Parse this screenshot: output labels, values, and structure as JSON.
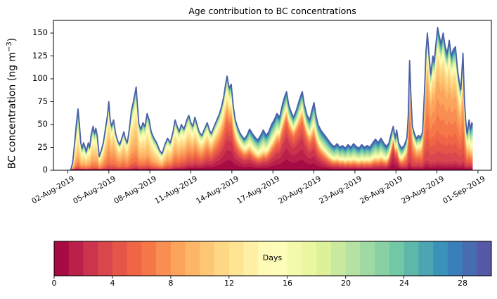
{
  "chart_data": {
    "type": "area",
    "stacked": true,
    "title": "Age contribution to BC concentrations",
    "ylabel_prefix": "BC concentration (ng m",
    "ylabel_sup": "−3",
    "ylabel_suffix": ")",
    "x_axis": {
      "unit": "date",
      "domain_days": [
        1,
        33
      ],
      "day_scale": "day-of-August-2019 (32 = 01-Sep-2019)",
      "tick_labels": [
        {
          "day": 2,
          "label": "02-Aug-2019"
        },
        {
          "day": 5,
          "label": "05-Aug-2019"
        },
        {
          "day": 8,
          "label": "08-Aug-2019"
        },
        {
          "day": 11,
          "label": "11-Aug-2019"
        },
        {
          "day": 14,
          "label": "14-Aug-2019"
        },
        {
          "day": 17,
          "label": "17-Aug-2019"
        },
        {
          "day": 20,
          "label": "20-Aug-2019"
        },
        {
          "day": 23,
          "label": "23-Aug-2019"
        },
        {
          "day": 26,
          "label": "26-Aug-2019"
        },
        {
          "day": 29,
          "label": "29-Aug-2019"
        },
        {
          "day": 32,
          "label": "01-Sep-2019"
        }
      ]
    },
    "y_axis": {
      "ticks": [
        0,
        25,
        50,
        75,
        100,
        125,
        150
      ],
      "max_units": 164
    },
    "colorbar": {
      "label": "Days",
      "ticks": [
        0,
        4,
        8,
        12,
        16,
        20,
        24,
        28
      ],
      "range": [
        0,
        30
      ],
      "segments": 30
    },
    "colormap_name": "Spectral",
    "colormap_stops": [
      "#9e0142",
      "#d53e4f",
      "#f46d43",
      "#fdae61",
      "#fee08b",
      "#ffffbf",
      "#e6f598",
      "#abdda4",
      "#66c2a5",
      "#3288bd",
      "#5e4fa2"
    ],
    "envelope_line_color": "#4b5fa6",
    "baseline_color": "#9e0142",
    "age_band_width_days": 3,
    "age_bands": [
      "0-3",
      "3-6",
      "6-9",
      "9-12",
      "12-15",
      "15-18",
      "18-21",
      "21-24",
      "24-27",
      "27-30"
    ],
    "samples_day_total": [
      [
        2.2,
        0
      ],
      [
        2.35,
        8
      ],
      [
        2.5,
        30
      ],
      [
        2.62,
        50
      ],
      [
        2.75,
        67
      ],
      [
        2.85,
        50
      ],
      [
        2.95,
        30
      ],
      [
        3.05,
        24
      ],
      [
        3.15,
        30
      ],
      [
        3.25,
        26
      ],
      [
        3.35,
        20
      ],
      [
        3.5,
        30
      ],
      [
        3.6,
        25
      ],
      [
        3.7,
        38
      ],
      [
        3.85,
        48
      ],
      [
        3.95,
        40
      ],
      [
        4.05,
        46
      ],
      [
        4.15,
        38
      ],
      [
        4.3,
        15
      ],
      [
        4.45,
        22
      ],
      [
        4.6,
        30
      ],
      [
        4.75,
        45
      ],
      [
        4.9,
        60
      ],
      [
        5.0,
        75
      ],
      [
        5.1,
        55
      ],
      [
        5.2,
        48
      ],
      [
        5.35,
        55
      ],
      [
        5.5,
        40
      ],
      [
        5.65,
        32
      ],
      [
        5.8,
        28
      ],
      [
        5.95,
        35
      ],
      [
        6.1,
        42
      ],
      [
        6.2,
        35
      ],
      [
        6.35,
        30
      ],
      [
        6.5,
        45
      ],
      [
        6.65,
        65
      ],
      [
        6.8,
        75
      ],
      [
        7.0,
        91
      ],
      [
        7.1,
        70
      ],
      [
        7.2,
        50
      ],
      [
        7.35,
        45
      ],
      [
        7.5,
        52
      ],
      [
        7.65,
        48
      ],
      [
        7.8,
        62
      ],
      [
        7.95,
        55
      ],
      [
        8.1,
        42
      ],
      [
        8.3,
        35
      ],
      [
        8.5,
        30
      ],
      [
        8.7,
        22
      ],
      [
        8.9,
        18
      ],
      [
        9.1,
        28
      ],
      [
        9.3,
        35
      ],
      [
        9.5,
        30
      ],
      [
        9.7,
        42
      ],
      [
        9.85,
        55
      ],
      [
        10.0,
        48
      ],
      [
        10.15,
        42
      ],
      [
        10.3,
        50
      ],
      [
        10.5,
        45
      ],
      [
        10.7,
        55
      ],
      [
        10.85,
        60
      ],
      [
        11.0,
        52
      ],
      [
        11.15,
        48
      ],
      [
        11.3,
        58
      ],
      [
        11.45,
        50
      ],
      [
        11.6,
        42
      ],
      [
        11.8,
        38
      ],
      [
        12.0,
        45
      ],
      [
        12.2,
        52
      ],
      [
        12.35,
        44
      ],
      [
        12.5,
        40
      ],
      [
        12.7,
        48
      ],
      [
        12.9,
        55
      ],
      [
        13.1,
        62
      ],
      [
        13.25,
        70
      ],
      [
        13.4,
        80
      ],
      [
        13.55,
        95
      ],
      [
        13.65,
        103
      ],
      [
        13.8,
        90
      ],
      [
        13.95,
        94
      ],
      [
        14.1,
        70
      ],
      [
        14.25,
        55
      ],
      [
        14.4,
        48
      ],
      [
        14.55,
        42
      ],
      [
        14.7,
        38
      ],
      [
        14.9,
        34
      ],
      [
        15.1,
        38
      ],
      [
        15.3,
        45
      ],
      [
        15.5,
        40
      ],
      [
        15.7,
        36
      ],
      [
        15.9,
        33
      ],
      [
        16.1,
        38
      ],
      [
        16.3,
        44
      ],
      [
        16.5,
        38
      ],
      [
        16.7,
        42
      ],
      [
        16.9,
        50
      ],
      [
        17.1,
        55
      ],
      [
        17.3,
        62
      ],
      [
        17.5,
        58
      ],
      [
        17.7,
        72
      ],
      [
        17.85,
        80
      ],
      [
        18.0,
        86
      ],
      [
        18.15,
        72
      ],
      [
        18.3,
        65
      ],
      [
        18.5,
        58
      ],
      [
        18.7,
        65
      ],
      [
        18.9,
        75
      ],
      [
        19.05,
        82
      ],
      [
        19.15,
        86
      ],
      [
        19.3,
        72
      ],
      [
        19.5,
        60
      ],
      [
        19.7,
        55
      ],
      [
        19.85,
        65
      ],
      [
        20.0,
        74
      ],
      [
        20.15,
        60
      ],
      [
        20.3,
        50
      ],
      [
        20.5,
        44
      ],
      [
        20.7,
        40
      ],
      [
        20.9,
        36
      ],
      [
        21.1,
        32
      ],
      [
        21.3,
        28
      ],
      [
        21.5,
        26
      ],
      [
        21.7,
        29
      ],
      [
        21.9,
        25
      ],
      [
        22.1,
        27
      ],
      [
        22.3,
        24
      ],
      [
        22.5,
        28
      ],
      [
        22.7,
        25
      ],
      [
        22.9,
        29
      ],
      [
        23.1,
        26
      ],
      [
        23.3,
        24
      ],
      [
        23.5,
        28
      ],
      [
        23.7,
        25
      ],
      [
        23.9,
        27
      ],
      [
        24.1,
        25
      ],
      [
        24.3,
        30
      ],
      [
        24.5,
        34
      ],
      [
        24.7,
        30
      ],
      [
        24.9,
        35
      ],
      [
        25.1,
        30
      ],
      [
        25.3,
        26
      ],
      [
        25.5,
        30
      ],
      [
        25.65,
        40
      ],
      [
        25.8,
        48
      ],
      [
        25.95,
        35
      ],
      [
        26.05,
        44
      ],
      [
        26.2,
        30
      ],
      [
        26.4,
        24
      ],
      [
        26.6,
        27
      ],
      [
        26.8,
        35
      ],
      [
        26.9,
        60
      ],
      [
        27.0,
        120
      ],
      [
        27.1,
        80
      ],
      [
        27.2,
        48
      ],
      [
        27.35,
        40
      ],
      [
        27.5,
        35
      ],
      [
        27.65,
        38
      ],
      [
        27.8,
        36
      ],
      [
        27.95,
        42
      ],
      [
        28.1,
        90
      ],
      [
        28.2,
        130
      ],
      [
        28.3,
        150
      ],
      [
        28.45,
        120
      ],
      [
        28.55,
        105
      ],
      [
        28.7,
        125
      ],
      [
        28.8,
        118
      ],
      [
        28.9,
        135
      ],
      [
        29.05,
        156
      ],
      [
        29.15,
        148
      ],
      [
        29.3,
        138
      ],
      [
        29.45,
        150
      ],
      [
        29.6,
        135
      ],
      [
        29.75,
        128
      ],
      [
        29.9,
        142
      ],
      [
        30.05,
        125
      ],
      [
        30.2,
        132
      ],
      [
        30.35,
        135
      ],
      [
        30.5,
        110
      ],
      [
        30.65,
        95
      ],
      [
        30.75,
        88
      ],
      [
        30.9,
        128
      ],
      [
        31.0,
        80
      ],
      [
        31.1,
        55
      ],
      [
        31.2,
        40
      ],
      [
        31.35,
        55
      ],
      [
        31.45,
        45
      ],
      [
        31.55,
        52
      ],
      [
        31.6,
        50
      ]
    ],
    "age_profile_keyframes": [
      {
        "day": 2.2,
        "fractions": [
          0.02,
          0.05,
          0.12,
          0.2,
          0.18,
          0.1,
          0.09,
          0.1,
          0.08,
          0.06
        ]
      },
      {
        "day": 4.0,
        "fractions": [
          0.02,
          0.06,
          0.18,
          0.26,
          0.18,
          0.09,
          0.07,
          0.06,
          0.05,
          0.03
        ]
      },
      {
        "day": 5.5,
        "fractions": [
          0.03,
          0.1,
          0.3,
          0.25,
          0.12,
          0.06,
          0.05,
          0.04,
          0.03,
          0.02
        ]
      },
      {
        "day": 7.0,
        "fractions": [
          0.03,
          0.08,
          0.2,
          0.28,
          0.16,
          0.08,
          0.06,
          0.05,
          0.04,
          0.02
        ]
      },
      {
        "day": 8.5,
        "fractions": [
          0.04,
          0.08,
          0.15,
          0.25,
          0.18,
          0.1,
          0.08,
          0.05,
          0.04,
          0.03
        ]
      },
      {
        "day": 10.0,
        "fractions": [
          0.06,
          0.13,
          0.22,
          0.22,
          0.15,
          0.08,
          0.06,
          0.04,
          0.02,
          0.02
        ]
      },
      {
        "day": 11.5,
        "fractions": [
          0.14,
          0.18,
          0.19,
          0.15,
          0.12,
          0.08,
          0.06,
          0.04,
          0.02,
          0.02
        ]
      },
      {
        "day": 13.0,
        "fractions": [
          0.26,
          0.2,
          0.15,
          0.11,
          0.09,
          0.06,
          0.05,
          0.04,
          0.02,
          0.02
        ]
      },
      {
        "day": 13.8,
        "fractions": [
          0.34,
          0.2,
          0.12,
          0.08,
          0.07,
          0.06,
          0.05,
          0.04,
          0.02,
          0.02
        ]
      },
      {
        "day": 14.8,
        "fractions": [
          0.3,
          0.16,
          0.1,
          0.07,
          0.07,
          0.08,
          0.08,
          0.06,
          0.04,
          0.04
        ]
      },
      {
        "day": 16.2,
        "fractions": [
          0.18,
          0.11,
          0.08,
          0.07,
          0.08,
          0.1,
          0.11,
          0.1,
          0.09,
          0.08
        ]
      },
      {
        "day": 17.4,
        "fractions": [
          0.3,
          0.18,
          0.1,
          0.06,
          0.05,
          0.06,
          0.07,
          0.07,
          0.06,
          0.05
        ]
      },
      {
        "day": 18.0,
        "fractions": [
          0.42,
          0.2,
          0.08,
          0.04,
          0.04,
          0.04,
          0.05,
          0.05,
          0.04,
          0.04
        ]
      },
      {
        "day": 19.2,
        "fractions": [
          0.4,
          0.2,
          0.09,
          0.05,
          0.04,
          0.04,
          0.05,
          0.05,
          0.04,
          0.04
        ]
      },
      {
        "day": 20.2,
        "fractions": [
          0.28,
          0.16,
          0.1,
          0.06,
          0.05,
          0.06,
          0.08,
          0.08,
          0.07,
          0.06
        ]
      },
      {
        "day": 21.2,
        "fractions": [
          0.16,
          0.12,
          0.09,
          0.06,
          0.06,
          0.08,
          0.12,
          0.12,
          0.1,
          0.09
        ]
      },
      {
        "day": 22.5,
        "fractions": [
          0.12,
          0.1,
          0.09,
          0.07,
          0.07,
          0.09,
          0.12,
          0.13,
          0.12,
          0.09
        ]
      },
      {
        "day": 24.5,
        "fractions": [
          0.12,
          0.1,
          0.09,
          0.07,
          0.07,
          0.09,
          0.11,
          0.13,
          0.12,
          0.1
        ]
      },
      {
        "day": 25.4,
        "fractions": [
          0.14,
          0.11,
          0.09,
          0.07,
          0.07,
          0.09,
          0.11,
          0.12,
          0.11,
          0.09
        ]
      },
      {
        "day": 25.8,
        "fractions": [
          0.42,
          0.16,
          0.08,
          0.04,
          0.04,
          0.05,
          0.06,
          0.06,
          0.05,
          0.04
        ]
      },
      {
        "day": 26.3,
        "fractions": [
          0.16,
          0.12,
          0.09,
          0.07,
          0.07,
          0.09,
          0.11,
          0.12,
          0.1,
          0.07
        ]
      },
      {
        "day": 26.9,
        "fractions": [
          0.12,
          0.22,
          0.2,
          0.1,
          0.06,
          0.06,
          0.06,
          0.07,
          0.06,
          0.05
        ]
      },
      {
        "day": 27.05,
        "fractions": [
          0.08,
          0.3,
          0.28,
          0.1,
          0.05,
          0.04,
          0.04,
          0.04,
          0.04,
          0.03
        ]
      },
      {
        "day": 27.6,
        "fractions": [
          0.15,
          0.2,
          0.15,
          0.1,
          0.08,
          0.07,
          0.07,
          0.07,
          0.06,
          0.05
        ]
      },
      {
        "day": 28.3,
        "fractions": [
          0.07,
          0.25,
          0.32,
          0.14,
          0.05,
          0.04,
          0.04,
          0.03,
          0.03,
          0.03
        ]
      },
      {
        "day": 29.5,
        "fractions": [
          0.06,
          0.2,
          0.34,
          0.18,
          0.06,
          0.04,
          0.03,
          0.03,
          0.03,
          0.03
        ]
      },
      {
        "day": 30.9,
        "fractions": [
          0.08,
          0.24,
          0.28,
          0.14,
          0.07,
          0.05,
          0.04,
          0.04,
          0.03,
          0.03
        ]
      },
      {
        "day": 31.3,
        "fractions": [
          0.1,
          0.14,
          0.14,
          0.11,
          0.09,
          0.09,
          0.09,
          0.09,
          0.08,
          0.07
        ]
      },
      {
        "day": 31.6,
        "fractions": [
          0.08,
          0.12,
          0.13,
          0.11,
          0.1,
          0.1,
          0.1,
          0.1,
          0.08,
          0.08
        ]
      }
    ]
  }
}
